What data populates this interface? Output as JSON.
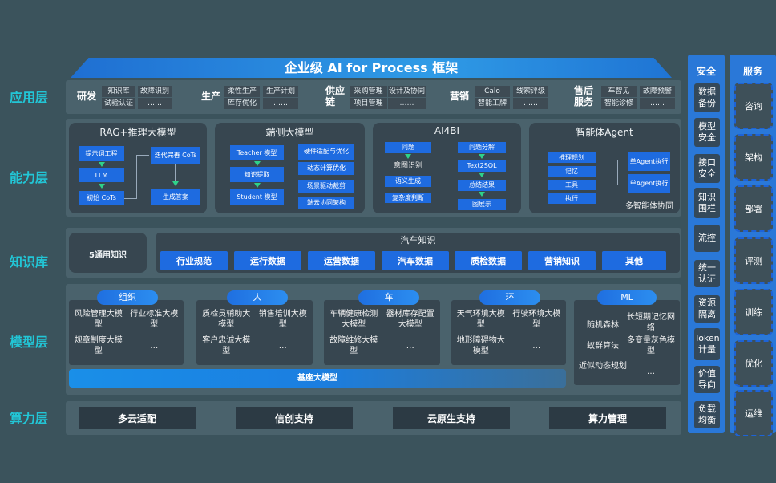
{
  "title": "企业级 AI for Process 框架",
  "layers": {
    "app": "应用层",
    "ability": "能力层",
    "knowledge": "知识库",
    "model": "模型层",
    "compute": "算力层"
  },
  "app_groups": [
    {
      "name": "研发",
      "items": [
        "知识库",
        "试验认证",
        "故障识别",
        "……"
      ]
    },
    {
      "name": "生产",
      "items": [
        "柔性生产",
        "库存优化",
        "生产计划",
        "……"
      ]
    },
    {
      "name": "供应链",
      "items": [
        "采购管理",
        "项目管理",
        "设计及协同",
        "……"
      ]
    },
    {
      "name": "营销",
      "items": [
        "Calo",
        "智能工牌",
        "线索评级",
        "……"
      ]
    },
    {
      "name": "售后服务",
      "items": [
        "车智见",
        "智能诊修",
        "故障预警",
        "……"
      ]
    }
  ],
  "ability": {
    "rag": {
      "title": "RAG+推理大模型",
      "boxes": [
        "提示词工程",
        "LLM",
        "初始 CoTs",
        "迭代完善 CoTs",
        "生成答案"
      ]
    },
    "edge": {
      "title": "端侧大模型",
      "left": [
        "Teacher 模型",
        "知识提取",
        "Student 模型"
      ],
      "right": [
        "硬件适配与优化",
        "动态计算优化",
        "场景驱动裁剪",
        "端云协同架构"
      ]
    },
    "ai4bi": {
      "title": "AI4BI",
      "left": [
        "问题",
        "意图识别",
        "语义生成",
        "复杂度判断"
      ],
      "right": [
        "问题分解",
        "Text2SQL",
        "总结结果",
        "图展示"
      ]
    },
    "agent": {
      "title": "智能体Agent",
      "left": [
        "推理规划",
        "记忆",
        "工具",
        "执行"
      ],
      "right": [
        "单Agent执行",
        "单Agent执行"
      ],
      "footer": "多智能体协同"
    }
  },
  "knowledge": {
    "general": "5通用知识",
    "auto_title": "汽车知识",
    "items": [
      "行业规范",
      "运行数据",
      "运营数据",
      "汽车数据",
      "质检数据",
      "营销知识",
      "其他"
    ]
  },
  "model": {
    "groups": [
      {
        "name": "组织",
        "items": [
          "风险管理大模型",
          "行业标准大模型",
          "规章制度大模型",
          "…"
        ]
      },
      {
        "name": "人",
        "items": [
          "质检员辅助大模型",
          "销售培训大模型",
          "客户忠诚大模型",
          "…"
        ]
      },
      {
        "name": "车",
        "items": [
          "车辆健康检测大模型",
          "器材库存配置大模型",
          "故障维修大模型",
          "…"
        ]
      },
      {
        "name": "环",
        "items": [
          "天气环境大模型",
          "行驶环境大模型",
          "地形障碍物大模型",
          "…"
        ]
      }
    ],
    "ml": {
      "name": "ML",
      "items": [
        "随机森林",
        "长短期记忆网络",
        "蚁群算法",
        "多变量灰色模型",
        "近似动态规划",
        "…"
      ]
    },
    "base": "基座大模型"
  },
  "compute": [
    "多云适配",
    "信创支持",
    "云原生支持",
    "算力管理"
  ],
  "security": {
    "title": "安全",
    "items": [
      "数据备份",
      "模型安全",
      "接口安全",
      "知识围栏",
      "流控",
      "统一认证",
      "资源隔离",
      "Token计量",
      "价值导向",
      "负载均衡"
    ]
  },
  "service": {
    "title": "服务",
    "items": [
      "咨询",
      "架构",
      "部署",
      "评测",
      "训练",
      "优化",
      "运维"
    ]
  },
  "colors": {
    "background": "#3b535c",
    "accent_blue": "#1e6be0",
    "layer_label": "#22c6d6",
    "arrow": "#2fd28a"
  }
}
